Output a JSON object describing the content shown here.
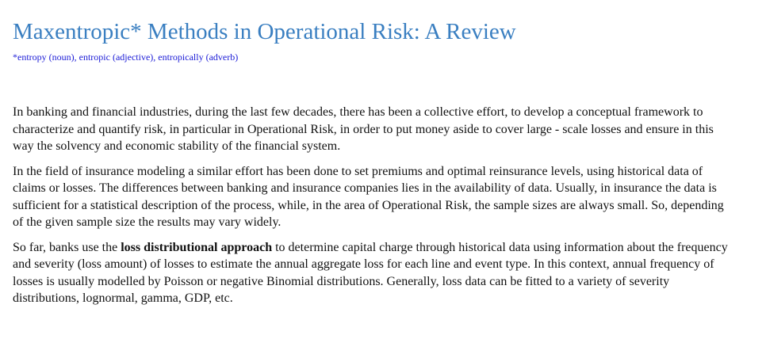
{
  "article": {
    "title": "Maxentropic* Methods in Operational Risk: A Review",
    "footnote": "*entropy (noun), entropic (adjective), entropically (adverb)",
    "paragraphs": {
      "p1": "In banking and financial industries, during the last few decades, there has been a collective effort, to develop a conceptual framework to characterize and quantify risk, in particular in Operational Risk, in order to put money aside to cover large - scale losses and ensure in this way the solvency and economic stability of the financial system.",
      "p2": "In the field of insurance modeling a similar effort has been done to set premiums and optimal reinsurance levels, using historical data of claims or losses. The differences between banking and insurance companies lies in the availability of data. Usually, in insurance the data is sufficient for a statistical description of the process, while, in the area of Operational Risk, the sample sizes are always small. So, depending of the given sample size the results may vary widely.",
      "p3_before": "So far, banks use the ",
      "p3_bold": "loss distributional approach",
      "p3_after": " to determine capital charge through historical data using information about the frequency and severity (loss amount) of losses to estimate the annual aggregate loss for each line and event type. In this context, annual frequency of losses is usually modelled by Poisson or negative Binomial distributions. Generally, loss data can be fitted to a variety of severity distributions, lognormal, gamma, GDP, etc."
    }
  },
  "colors": {
    "title": "#3a7fc1",
    "footnote": "#1a1ad6",
    "text": "#111111",
    "background": "#ffffff"
  }
}
